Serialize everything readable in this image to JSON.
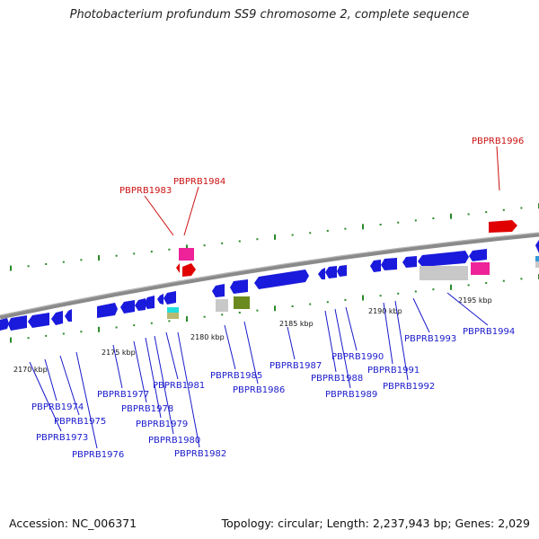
{
  "title": "Photobacterium profundum SS9 chromosome 2, complete sequence",
  "footer": {
    "accession": "Accession: NC_006371",
    "summary": "Topology: circular; Length: 2,237,943 bp; Genes: 2,029"
  },
  "colors": {
    "forward_gene": "#1a1adc",
    "highlight_gene": "#e00000",
    "rna_pink": "#ee2299",
    "grey_feature": "#c8c8c8",
    "olive_feature": "#6a8a20",
    "cyan_feature": "#22dddd",
    "label_blue": "#1a1acc",
    "label_red": "#cc1111",
    "tick_green": "#2a8a2a",
    "backbone": "#888888"
  },
  "ticks": [
    {
      "label": "2170 kbp"
    },
    {
      "label": "2175 kbp"
    },
    {
      "label": "2180 kbp"
    },
    {
      "label": "2185 kbp"
    },
    {
      "label": "2190 kbp"
    },
    {
      "label": "2195 kbp"
    }
  ],
  "labels_below": [
    "PBPRB1973",
    "PBPRB1974",
    "PBPRB1975",
    "PBPRB1976",
    "PBPRB1977",
    "PBPRB1978",
    "PBPRB1979",
    "PBPRB1980",
    "PBPRB1981",
    "PBPRB1982",
    "PBPRB1985",
    "PBPRB1986",
    "PBPRB1987",
    "PBPRB1988",
    "PBPRB1989",
    "PBPRB1990",
    "PBPRB1991",
    "PBPRB1992",
    "PBPRB1993",
    "PBPRB1994"
  ],
  "labels_above": [
    "PBPRB1983",
    "PBPRB1984",
    "PBPRB1996"
  ]
}
